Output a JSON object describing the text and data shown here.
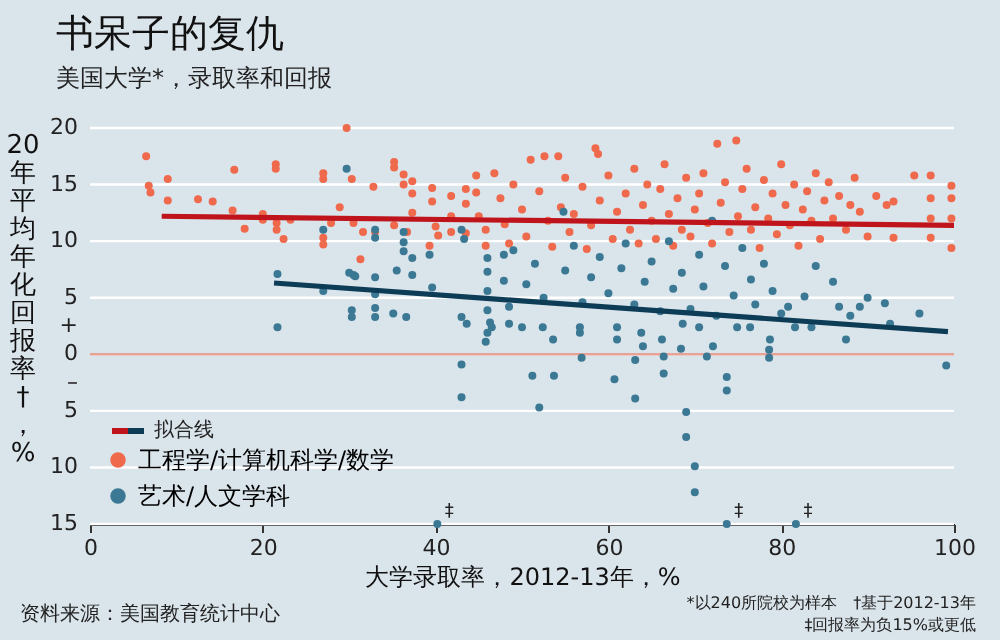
{
  "chart_data": {
    "type": "scatter",
    "title": "书呆子的复仇",
    "subtitle": "美国大学*，录取率和回报",
    "xlabel": "大学录取率，2012-13年，%",
    "ylabel": "20年平均年化回报率†，%",
    "xlim": [
      0,
      100
    ],
    "xticks": [
      0,
      20,
      40,
      60,
      80,
      100
    ],
    "ylim": [
      -15,
      20
    ],
    "yticks": [
      {
        "value": -15,
        "label": "15"
      },
      {
        "value": -10,
        "label": "10"
      },
      {
        "value": -5,
        "label": "5"
      },
      {
        "value": -2.5,
        "label": "–"
      },
      0,
      {
        "value": 2.5,
        "label": "+"
      },
      5,
      10,
      15,
      20
    ],
    "grid": "y",
    "legend": "bottom left",
    "marker": "circle",
    "ref_lines": [
      {
        "axis": "y",
        "value": 0,
        "color": "#e8a295"
      }
    ],
    "annotations": [
      "资料来源：美国教育统计中心",
      "*以240所院校为样本",
      "†基于2012-13年",
      "‡回报率为负15%或更低",
      {
        "text": "‡",
        "x": 40.2,
        "y": -15
      },
      {
        "text": "‡",
        "x": 73.7,
        "y": -15
      },
      {
        "text": "‡",
        "x": 81.7,
        "y": -15
      }
    ],
    "series": [
      {
        "name": "工程学/计算机科学/数学",
        "color": "#ef6a4c",
        "x": [
          6.5,
          6.8,
          7,
          9,
          9,
          12.5,
          14.2,
          16.7,
          16.5,
          17.9,
          20,
          20,
          21.5,
          21.5,
          21.6,
          21.6,
          22.4,
          23.2,
          27,
          27,
          27,
          27,
          27.9,
          28.9,
          29.7,
          30.3,
          30.5,
          31.3,
          32.8,
          31.6,
          33,
          35.2,
          35.2,
          35.2,
          36.3,
          36.3,
          37.3,
          37.3,
          37.3,
          36.7,
          39.3,
          39.6,
          39.6,
          40,
          40.3,
          41.8,
          41.8,
          41.8,
          43.5,
          43.5,
          43.5,
          44.7,
          44.7,
          45,
          45.8,
          45.8,
          46.8,
          47.5,
          48,
          48.5,
          49,
          50,
          50.5,
          51,
          52,
          52.6,
          53,
          53.5,
          54.2,
          54.5,
          55,
          55.5,
          56,
          57,
          57.5,
          58,
          58.5,
          58.8,
          59,
          60,
          60.5,
          61,
          62,
          62.5,
          63,
          63.5,
          64,
          64.5,
          65,
          65.5,
          66,
          66.5,
          67,
          67.5,
          68,
          68.5,
          69,
          69.5,
          70,
          70.5,
          71,
          71.5,
          72,
          72.6,
          73,
          73.5,
          74,
          74.8,
          75,
          75.5,
          76,
          76.5,
          77,
          77.5,
          78,
          78.5,
          79,
          79.5,
          80,
          80.5,
          81,
          81.5,
          82,
          82.5,
          83,
          83.5,
          84,
          84.5,
          85,
          85.5,
          86,
          86.7,
          87.5,
          88,
          88.5,
          89.1,
          90,
          91,
          92.2,
          93,
          93,
          95.4,
          97.3,
          99.7,
          97.3,
          99.7,
          99.7,
          97.3,
          99.7,
          97.3
        ],
        "values": [
          17.5,
          14.9,
          14.3,
          15.5,
          13.6,
          13.7,
          13.5,
          16.3,
          12.7,
          11.1,
          12.4,
          11.9,
          16.8,
          16.4,
          11.6,
          11,
          10.2,
          11.9,
          16,
          15.5,
          10.3,
          9.7,
          11.6,
          13,
          20,
          15.5,
          11.6,
          8.4,
          14.8,
          10.8,
          10.8,
          17,
          16.5,
          11.4,
          15.9,
          15,
          15.3,
          14.2,
          12.5,
          10.8,
          9.6,
          14.7,
          13.5,
          11.3,
          10.5,
          14,
          12.2,
          10.8,
          14.6,
          13.3,
          10.7,
          15.8,
          14.3,
          12.2,
          11,
          9.6,
          16,
          13.8,
          11.5,
          9.8,
          15,
          12.8,
          10.4,
          17.2,
          14.4,
          17.5,
          11.8,
          9.5,
          17.5,
          13,
          15.6,
          10.8,
          12.4,
          14.8,
          9.3,
          11.4,
          18.2,
          17.7,
          13.6,
          15.8,
          10.2,
          12.6,
          14.2,
          11,
          16.4,
          9.8,
          13.2,
          15,
          11.8,
          10.2,
          14.6,
          16.8,
          12.4,
          9.6,
          13.8,
          11,
          15.6,
          10.4,
          12.8,
          14.2,
          16,
          11.6,
          9.8,
          18.6,
          13.4,
          15.2,
          10.8,
          18.9,
          12.2,
          14.6,
          16.4,
          11,
          13,
          9.4,
          15.4,
          12,
          14.2,
          10.6,
          16.8,
          13.2,
          11.4,
          15,
          9.6,
          12.8,
          14.4,
          11.8,
          16,
          10.2,
          13.6,
          15.2,
          12,
          14,
          11,
          13.2,
          15.6,
          12.6,
          10.4,
          14,
          13.2,
          10.3,
          13.5,
          15.8,
          15.8,
          14.9,
          13.8,
          13.8,
          12,
          12,
          9.4,
          10.3
        ]
      },
      {
        "name": "艺术/人文学科",
        "color": "#3b7894",
        "x": [
          21.7,
          21.7,
          27,
          27,
          29.7,
          30,
          30.5,
          30.3,
          30.3,
          30.7,
          33,
          33,
          33,
          33,
          33,
          33,
          35.1,
          35.5,
          36.3,
          36.3,
          36.3,
          36.6,
          37.3,
          37.3,
          39.3,
          39.6,
          43,
          43.3,
          43,
          43.6,
          43,
          43,
          40.2,
          46,
          46,
          46,
          46,
          46.3,
          46,
          45.8,
          47.9,
          47.9,
          46.5,
          48.5,
          48.5,
          50,
          51.2,
          53.7,
          52,
          52.4,
          53.6,
          56.7,
          56.7,
          56.9,
          60.7,
          61,
          61,
          63.1,
          63.1,
          63.8,
          64,
          66.2,
          66.4,
          66.4,
          68.6,
          68.4,
          69,
          69,
          70,
          70,
          70.5,
          71.4,
          72.1,
          73.7,
          73.7,
          73.7,
          74.9,
          76.4,
          78.7,
          78.6,
          78.6,
          80.8,
          81.6,
          81.7,
          83.5,
          86.7,
          87.5,
          89.1,
          92.6,
          99.1,
          49,
          50.5,
          51.5,
          52.5,
          54.8,
          55,
          56,
          57,
          58,
          59,
          60,
          61.5,
          62,
          63,
          64.2,
          65,
          66,
          67,
          67.5,
          68.5,
          69.5,
          70.5,
          71,
          72,
          72.5,
          73.5,
          74.5,
          75.5,
          76.5,
          77,
          78,
          79,
          80,
          82.7,
          84,
          86,
          88,
          90,
          92,
          96
        ],
        "values": [
          7.1,
          2.4,
          11,
          5.6,
          16.4,
          7.2,
          7,
          3.9,
          3.3,
          6.9,
          11,
          10.3,
          6.8,
          5.3,
          4.1,
          3.3,
          3.6,
          7.4,
          10.8,
          9.9,
          9.1,
          3.3,
          8.5,
          7,
          8.8,
          5.9,
          11,
          10.2,
          3.3,
          2.7,
          -0.9,
          -3.8,
          -15,
          8.5,
          7.3,
          5.6,
          3.9,
          2.8,
          1.9,
          1.1,
          8.8,
          6.5,
          2.4,
          2.7,
          4.2,
          2.4,
          -1.9,
          -1.9,
          -4.7,
          2.4,
          1.3,
          2.4,
          1.9,
          -0.3,
          -2.2,
          2.4,
          1.3,
          -3.9,
          -0.5,
          1.9,
          0.7,
          1.3,
          -1.7,
          -0.2,
          2.7,
          0.5,
          -5.1,
          -7.3,
          -9.9,
          -12.2,
          2.4,
          -0.2,
          0.7,
          -2,
          -3.2,
          -15,
          2.4,
          2.4,
          1.3,
          -0.3,
          0.4,
          4.2,
          2.4,
          -15,
          2.4,
          4.2,
          1.3,
          4.2,
          2.7,
          -1,
          9.2,
          6.2,
          8,
          5,
          12.6,
          7.4,
          9.6,
          4.6,
          6.8,
          8.6,
          5.4,
          7.6,
          9.8,
          4.4,
          6.4,
          8.2,
          3.8,
          10,
          5.8,
          7.2,
          4,
          8.8,
          6,
          11.8,
          3.4,
          7.8,
          5.2,
          9.4,
          6.6,
          4.4,
          8,
          5.6,
          3.6,
          5.1,
          7.8,
          6.4,
          3.4,
          5,
          4.5,
          3.6
        ]
      },
      {
        "name": "拟合线",
        "type": "line",
        "marker": "none",
        "color": "#c0141c",
        "x": [
          8.3,
          100
        ],
        "values": [
          12.2,
          11.4
        ]
      },
      {
        "type": "line",
        "marker": "none",
        "color": "#0d3c56",
        "x": [
          21.3,
          99.3
        ],
        "values": [
          6.3,
          2.0
        ]
      }
    ]
  }
}
